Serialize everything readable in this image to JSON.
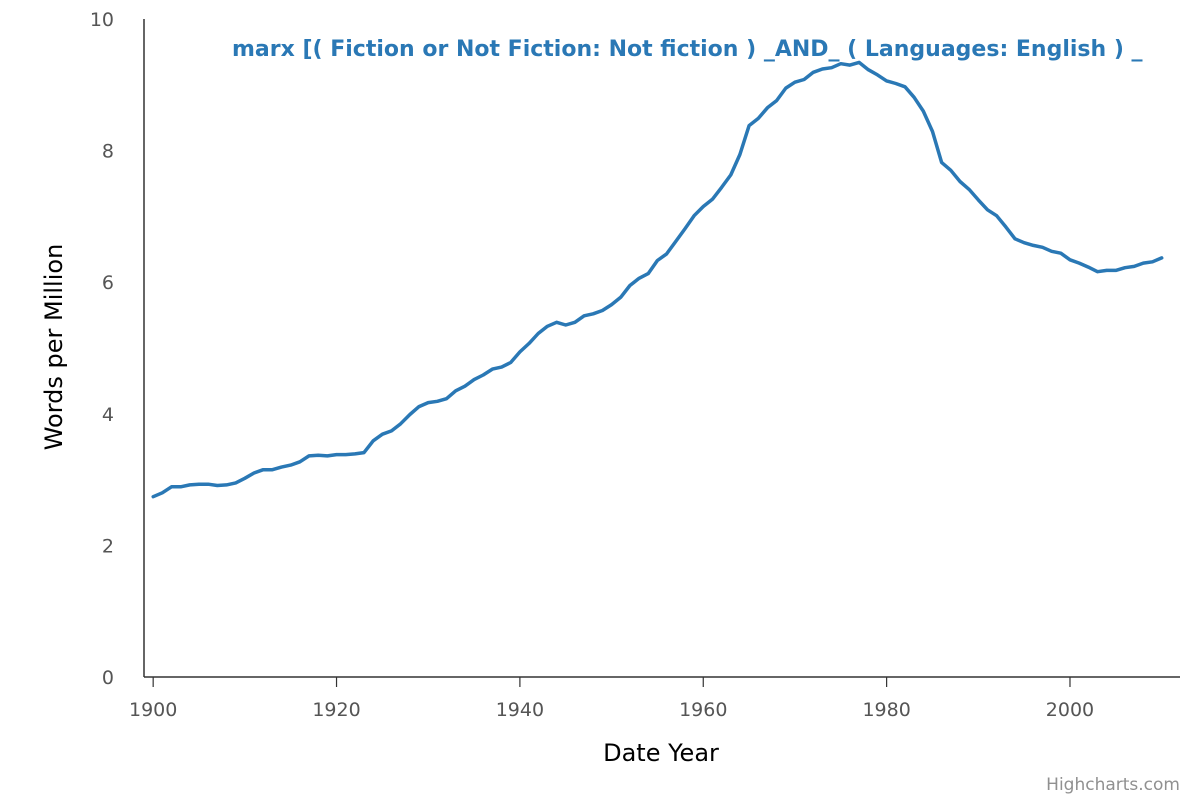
{
  "chart_data": {
    "type": "line",
    "xlabel": "Date Year",
    "ylabel": "Words per Million",
    "xlim": [
      1899,
      2012
    ],
    "ylim": [
      0,
      10
    ],
    "x_ticks": [
      "1900",
      "1920",
      "1940",
      "1960",
      "1980",
      "2000"
    ],
    "y_ticks": [
      "0",
      "2",
      "4",
      "6",
      "8",
      "10"
    ],
    "grid": false,
    "legend": "none",
    "series": [
      {
        "name": "marx [( Fiction or Not Fiction: Not fiction ) _AND_ ( Languages: English ) _",
        "color": "#2a78b5",
        "points": [
          [
            1900,
            2.74
          ],
          [
            1901,
            2.8
          ],
          [
            1902,
            2.89
          ],
          [
            1903,
            2.89
          ],
          [
            1904,
            2.92
          ],
          [
            1905,
            2.93
          ],
          [
            1906,
            2.93
          ],
          [
            1907,
            2.91
          ],
          [
            1908,
            2.92
          ],
          [
            1909,
            2.95
          ],
          [
            1910,
            3.02
          ],
          [
            1911,
            3.1
          ],
          [
            1912,
            3.15
          ],
          [
            1913,
            3.15
          ],
          [
            1914,
            3.19
          ],
          [
            1915,
            3.22
          ],
          [
            1916,
            3.27
          ],
          [
            1917,
            3.36
          ],
          [
            1918,
            3.37
          ],
          [
            1919,
            3.36
          ],
          [
            1920,
            3.38
          ],
          [
            1921,
            3.38
          ],
          [
            1922,
            3.39
          ],
          [
            1923,
            3.41
          ],
          [
            1924,
            3.59
          ],
          [
            1925,
            3.69
          ],
          [
            1926,
            3.74
          ],
          [
            1927,
            3.85
          ],
          [
            1928,
            3.99
          ],
          [
            1929,
            4.11
          ],
          [
            1930,
            4.17
          ],
          [
            1931,
            4.19
          ],
          [
            1932,
            4.23
          ],
          [
            1933,
            4.35
          ],
          [
            1934,
            4.42
          ],
          [
            1935,
            4.52
          ],
          [
            1936,
            4.59
          ],
          [
            1937,
            4.68
          ],
          [
            1938,
            4.71
          ],
          [
            1939,
            4.78
          ],
          [
            1940,
            4.94
          ],
          [
            1941,
            5.07
          ],
          [
            1942,
            5.22
          ],
          [
            1943,
            5.33
          ],
          [
            1944,
            5.39
          ],
          [
            1945,
            5.35
          ],
          [
            1946,
            5.39
          ],
          [
            1947,
            5.49
          ],
          [
            1948,
            5.52
          ],
          [
            1949,
            5.57
          ],
          [
            1950,
            5.66
          ],
          [
            1951,
            5.77
          ],
          [
            1952,
            5.95
          ],
          [
            1953,
            6.06
          ],
          [
            1954,
            6.13
          ],
          [
            1955,
            6.33
          ],
          [
            1956,
            6.43
          ],
          [
            1957,
            6.62
          ],
          [
            1958,
            6.81
          ],
          [
            1959,
            7.01
          ],
          [
            1960,
            7.15
          ],
          [
            1961,
            7.26
          ],
          [
            1962,
            7.44
          ],
          [
            1963,
            7.63
          ],
          [
            1964,
            7.94
          ],
          [
            1965,
            8.38
          ],
          [
            1966,
            8.49
          ],
          [
            1967,
            8.65
          ],
          [
            1968,
            8.76
          ],
          [
            1969,
            8.95
          ],
          [
            1970,
            9.04
          ],
          [
            1971,
            9.08
          ],
          [
            1972,
            9.19
          ],
          [
            1973,
            9.24
          ],
          [
            1974,
            9.26
          ],
          [
            1975,
            9.32
          ],
          [
            1976,
            9.3
          ],
          [
            1977,
            9.34
          ],
          [
            1978,
            9.23
          ],
          [
            1979,
            9.15
          ],
          [
            1980,
            9.06
          ],
          [
            1981,
            9.02
          ],
          [
            1982,
            8.97
          ],
          [
            1983,
            8.81
          ],
          [
            1984,
            8.6
          ],
          [
            1985,
            8.29
          ],
          [
            1986,
            7.82
          ],
          [
            1987,
            7.7
          ],
          [
            1988,
            7.53
          ],
          [
            1989,
            7.41
          ],
          [
            1990,
            7.25
          ],
          [
            1991,
            7.1
          ],
          [
            1992,
            7.01
          ],
          [
            1993,
            6.84
          ],
          [
            1994,
            6.66
          ],
          [
            1995,
            6.6
          ],
          [
            1996,
            6.56
          ],
          [
            1997,
            6.53
          ],
          [
            1998,
            6.47
          ],
          [
            1999,
            6.44
          ],
          [
            2000,
            6.34
          ],
          [
            2001,
            6.29
          ],
          [
            2002,
            6.23
          ],
          [
            2003,
            6.16
          ],
          [
            2004,
            6.18
          ],
          [
            2005,
            6.18
          ],
          [
            2006,
            6.22
          ],
          [
            2007,
            6.24
          ],
          [
            2008,
            6.29
          ],
          [
            2009,
            6.31
          ],
          [
            2010,
            6.37
          ]
        ]
      }
    ]
  },
  "credits": "Highcharts.com"
}
